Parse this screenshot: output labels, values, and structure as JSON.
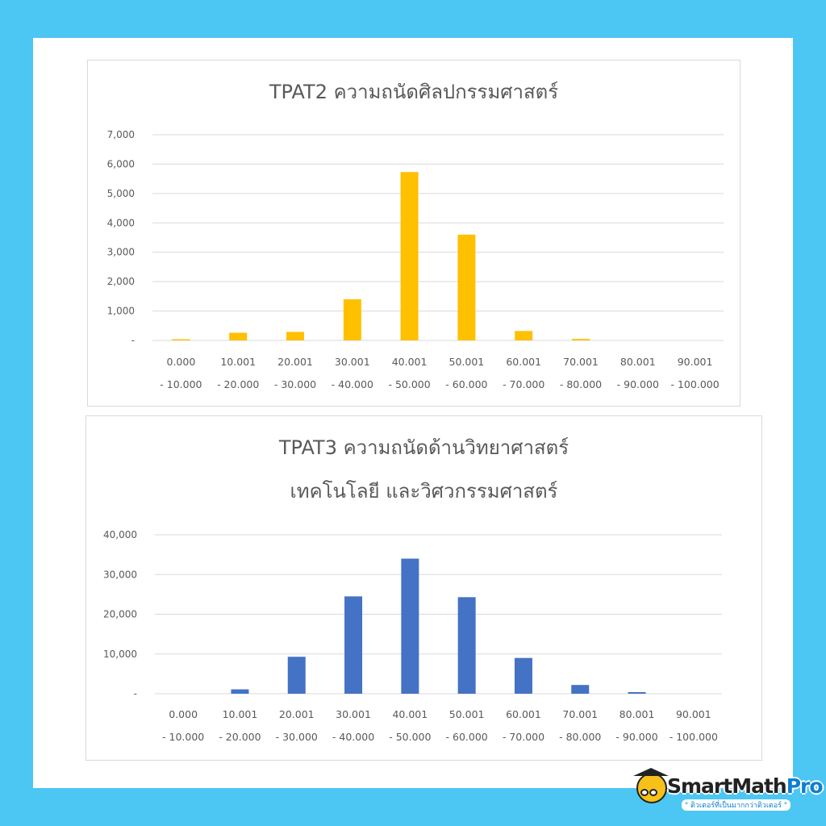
{
  "chart_data": [
    {
      "type": "bar",
      "title": "TPAT2 ความถนัดศิลปกรรมศาสตร์",
      "categories": [
        [
          "0.000",
          "- 10.000"
        ],
        [
          "10.001",
          "- 20.000"
        ],
        [
          "20.001",
          "- 30.000"
        ],
        [
          "30.001",
          "- 40.000"
        ],
        [
          "40.001",
          "- 50.000"
        ],
        [
          "50.001",
          "- 60.000"
        ],
        [
          "60.001",
          "- 70.000"
        ],
        [
          "70.001",
          "- 80.000"
        ],
        [
          "80.001",
          "- 90.000"
        ],
        [
          "90.001",
          "- 100.000"
        ]
      ],
      "values": [
        40,
        260,
        290,
        1400,
        5730,
        3600,
        320,
        50,
        0,
        0
      ],
      "ylim": [
        0,
        7000
      ],
      "yticks": [
        "-",
        "1,000",
        "2,000",
        "3,000",
        "4,000",
        "5,000",
        "6,000",
        "7,000"
      ],
      "color": "#ffc000",
      "grid": true
    },
    {
      "type": "bar",
      "title": [
        "TPAT3 ความถนัดด้านวิทยาศาสตร์",
        "เทคโนโลยี และวิศวกรรมศาสตร์"
      ],
      "categories": [
        [
          "0.000",
          "- 10.000"
        ],
        [
          "10.001",
          "- 20.000"
        ],
        [
          "20.001",
          "- 30.000"
        ],
        [
          "30.001",
          "- 40.000"
        ],
        [
          "40.001",
          "- 50.000"
        ],
        [
          "50.001",
          "- 60.000"
        ],
        [
          "60.001",
          "- 70.000"
        ],
        [
          "70.001",
          "- 80.000"
        ],
        [
          "80.001",
          "- 90.000"
        ],
        [
          "90.001",
          "- 100.000"
        ]
      ],
      "values": [
        0,
        1100,
        9300,
        24500,
        34000,
        24300,
        9000,
        2200,
        400,
        0
      ],
      "ylim": [
        0,
        40000
      ],
      "yticks": [
        "-",
        "10,000",
        "20,000",
        "30,000",
        "40,000"
      ],
      "color": "#4472c4",
      "grid": true
    }
  ],
  "branding": {
    "name_main": "SmartMath",
    "name_accent": "Pro",
    "tagline": "\" ติวเตอร์ที่เป็นมากกว่าติวเตอร์ \""
  }
}
